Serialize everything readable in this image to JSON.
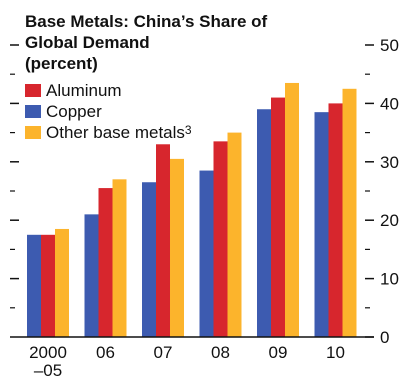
{
  "chart_data": {
    "type": "bar",
    "title_lines": [
      "Base Metals: China’s Share of",
      "Global Demand",
      "(percent)"
    ],
    "categories": [
      "2000\n–05",
      "06",
      "07",
      "08",
      "09",
      "10"
    ],
    "series": [
      {
        "name": "Aluminum",
        "color": "#d7262d",
        "values": [
          17.5,
          25.5,
          33,
          33.5,
          41,
          40
        ]
      },
      {
        "name": "Copper",
        "color": "#3d5bb0",
        "values": [
          17.5,
          21,
          26.5,
          28.5,
          39,
          38.5
        ]
      },
      {
        "name": "Other base metals",
        "footnote": "3",
        "color": "#fcb42c",
        "values": [
          18.5,
          27,
          30.5,
          35,
          43.5,
          42.5
        ]
      }
    ],
    "bar_order": [
      "Copper",
      "Aluminum",
      "Other base metals"
    ],
    "yaxis": {
      "side": "right",
      "ticks": [
        0,
        10,
        20,
        30,
        40,
        50
      ],
      "ylim": [
        0,
        50
      ]
    },
    "legend_position": "top-left",
    "grid": false
  }
}
